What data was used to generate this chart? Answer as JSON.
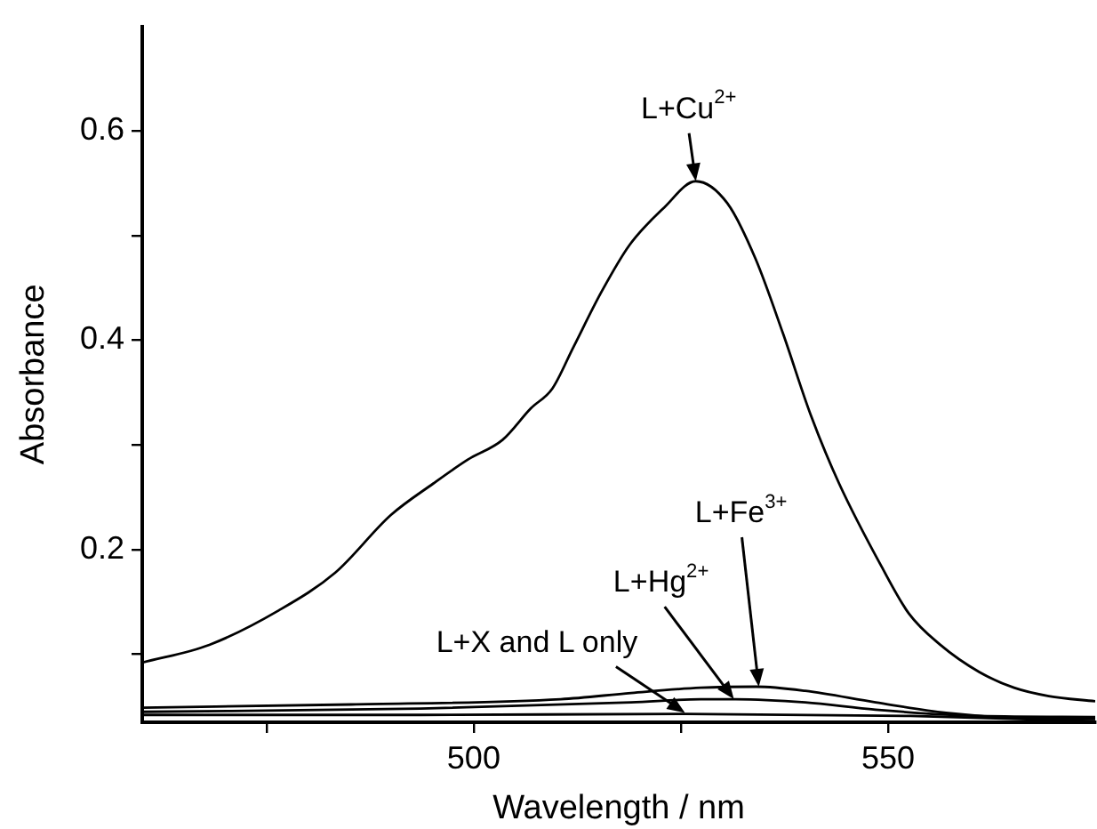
{
  "chart_data": {
    "type": "line",
    "xlabel": "Wavelength / nm",
    "ylabel": "Absorbance",
    "xlim": [
      460,
      575
    ],
    "xticks": [
      {
        "value": 475,
        "label": null
      },
      500,
      {
        "value": 525,
        "label": null
      },
      550
    ],
    "ylim": [
      0.035,
      0.7
    ],
    "yticks": [
      {
        "value": 0.1,
        "label": null
      },
      0.2,
      {
        "value": 0.3,
        "label": null
      },
      0.4,
      {
        "value": 0.5,
        "label": null
      },
      0.6
    ],
    "grid": false,
    "legend": false,
    "marker": "none",
    "line_style": "solid",
    "series": [
      {
        "color": "#000000",
        "x": [
          460,
          468.1,
          476.5,
          483.3,
          490,
          495.1,
          499.3,
          503.5,
          506.9,
          509.5,
          512,
          515.4,
          518.8,
          523,
          526.8,
          530.6,
          534,
          537.3,
          540.7,
          544.1,
          549.2,
          552.5,
          556.3,
          561,
          565.2,
          569.4,
          575
        ],
        "values": [
          0.092,
          0.109,
          0.142,
          0.178,
          0.233,
          0.263,
          0.286,
          0.305,
          0.335,
          0.354,
          0.393,
          0.446,
          0.491,
          0.527,
          0.552,
          0.531,
          0.478,
          0.407,
          0.328,
          0.263,
          0.184,
          0.139,
          0.109,
          0.083,
          0.068,
          0.06,
          0.055
        ]
      },
      {
        "color": "#000000",
        "x": [
          460,
          485.2,
          510.5,
          519,
          527.4,
          534.1,
          540,
          548.5,
          557,
          565.4,
          575
        ],
        "values": [
          0.049,
          0.052,
          0.057,
          0.063,
          0.068,
          0.069,
          0.065,
          0.054,
          0.044,
          0.039,
          0.038
        ]
      },
      {
        "color": "#000000",
        "x": [
          460,
          493.6,
          519,
          527.4,
          531.6,
          540,
          548.5,
          561.1,
          575
        ],
        "values": [
          0.045,
          0.048,
          0.054,
          0.057,
          0.057,
          0.054,
          0.047,
          0.041,
          0.04
        ]
      },
      {
        "color": "#000000",
        "x": [
          460,
          493.6,
          525.7,
          552.7,
          575
        ],
        "values": [
          0.042,
          0.042,
          0.043,
          0.041,
          0.036
        ]
      }
    ],
    "annotations": [
      {
        "text": "L+Cu$^{2+}$",
        "x": 526.8,
        "y": 0.552
      },
      {
        "text": "L+Fe$^{3+}$",
        "x": 534.4,
        "y": 0.069
      },
      {
        "text": "L+Hg$^{2+}$",
        "x": 531.4,
        "y": 0.057
      },
      {
        "text": "L+X and L only",
        "x": 525.5,
        "y": 0.044
      }
    ]
  }
}
